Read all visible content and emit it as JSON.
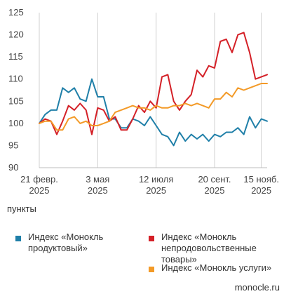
{
  "chart_data": {
    "type": "line",
    "ylim": [
      90,
      125
    ],
    "yticks": [
      90,
      95,
      100,
      105,
      110,
      115,
      120,
      125
    ],
    "xticks": [
      {
        "line1": "21 февр.",
        "line2": "2025",
        "index": 0
      },
      {
        "line1": "3 мая",
        "line2": "2025",
        "index": 10
      },
      {
        "line1": "12 июля",
        "line2": "2025",
        "index": 20
      },
      {
        "line1": "20 сент.",
        "line2": "2025",
        "index": 30
      },
      {
        "line1": "15 нояб.",
        "line2": "2025",
        "index": 38
      }
    ],
    "series": [
      {
        "name": "Индекс «Монокль продуктовый»",
        "color": "#1f7fa8",
        "values": [
          100,
          102,
          103,
          103,
          108,
          107,
          108,
          105.5,
          105,
          110,
          106,
          106,
          101,
          101,
          99,
          99,
          101,
          100.5,
          99.5,
          101.5,
          99.5,
          97.5,
          97,
          95,
          98,
          96,
          97.5,
          96.5,
          97.5,
          96,
          97.5,
          97,
          98,
          98,
          99,
          97.5,
          101.5,
          99,
          101,
          100.5
        ]
      },
      {
        "name": "Индекс «Монокль непродовольственные товары»",
        "color": "#d42027",
        "values": [
          100,
          101,
          100.5,
          97.5,
          100.5,
          104,
          103,
          104.5,
          103,
          97.5,
          103.5,
          103,
          100.5,
          101.5,
          98.5,
          98.5,
          101,
          104,
          102.5,
          105,
          103.5,
          110.5,
          111,
          105,
          103,
          105,
          106.5,
          112,
          110.5,
          113,
          112.5,
          118.5,
          119,
          116,
          120,
          120.5,
          116,
          110,
          110.5,
          111
        ]
      },
      {
        "name": "Индекс «Монокль услуги»",
        "color": "#f39a27",
        "values": [
          100,
          100.5,
          100.5,
          98.5,
          98.5,
          101,
          101.5,
          100,
          100.5,
          99.5,
          99.5,
          100,
          100.5,
          102.5,
          103,
          103.5,
          104,
          103.5,
          103.5,
          103,
          104,
          103.5,
          103.5,
          104,
          104,
          104.5,
          104,
          104.5,
          104,
          103.5,
          105.5,
          105.5,
          107,
          106,
          108,
          107.5,
          108,
          108.5,
          109,
          109
        ]
      }
    ],
    "unit_label": "пункты",
    "legend_position": "bottom",
    "grid": "vertical"
  },
  "legend": [
    {
      "label": "Индекс «Монокль продуктовый»",
      "color": "#1f7fa8"
    },
    {
      "label": "Индекс «Монокль непродовольственные товары»",
      "color": "#d42027"
    },
    {
      "label": "Индекс «Монокль услуги»",
      "color": "#f39a27"
    }
  ],
  "source": "monocle.ru"
}
